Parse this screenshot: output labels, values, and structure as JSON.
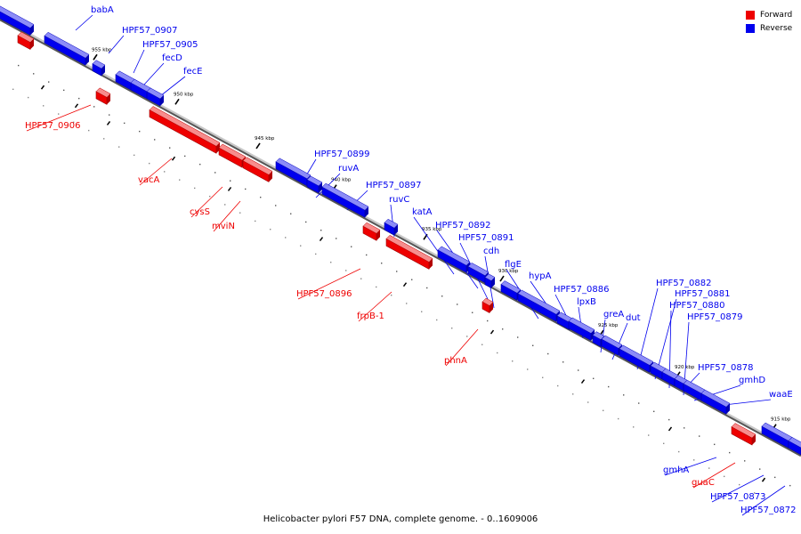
{
  "caption": "Helicobacter pylori F57 DNA, complete genome. - 0..1609006",
  "legend": {
    "forward_label": "Forward",
    "reverse_label": "Reverse",
    "forward_color": "#ee0000",
    "reverse_color": "#0000ee"
  },
  "axis": {
    "ticks": [
      "955 kbp",
      "950 kbp",
      "945 kbp",
      "940 kbp",
      "935 kbp",
      "930 kbp",
      "925 kbp",
      "920 kbp",
      "915 kbp"
    ]
  },
  "genes_reverse": [
    "babA",
    "HPF57_0907",
    "HPF57_0905",
    "fecD",
    "fecE",
    "HPF57_0899",
    "ruvA",
    "HPF57_0897",
    "ruvC",
    "katA",
    "HPF57_0892",
    "HPF57_0891",
    "cdh",
    "flgE",
    "hypA",
    "HPF57_0886",
    "lpxB",
    "greA",
    "dut",
    "HPF57_0882",
    "HPF57_0881",
    "HPF57_0880",
    "HPF57_0879",
    "HPF57_0878",
    "gmhD",
    "waaE",
    "gmhA",
    "HPF57_0873",
    "HPF57_0872"
  ],
  "genes_forward": [
    "HPF57_0906",
    "vacA",
    "cysS",
    "mviN",
    "HPF57_0896",
    "frpB-1",
    "phnA",
    "guaC"
  ]
}
